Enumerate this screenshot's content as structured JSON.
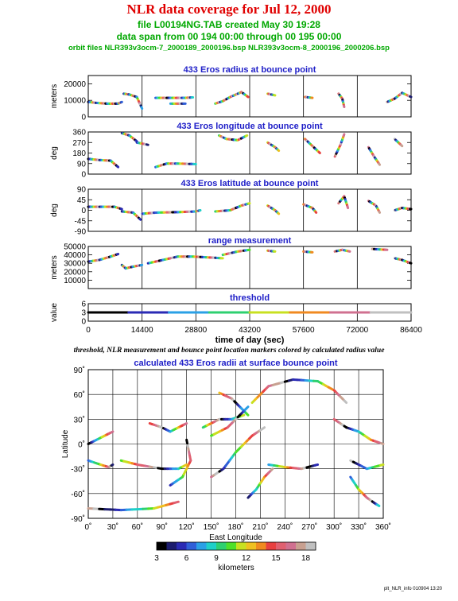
{
  "header": {
    "title": "NLR data coverage for Jul 12, 2000",
    "file_line": "file L00194NG.TAB created May 30 19:28",
    "span_line": "data span from 00 194 00:00 through 00 195 00:00",
    "orbit_line": "orbit files NLR393v3ocm-7_2000189_2000196.bsp NLR393v3ocm-8_2000196_2000206.bsp"
  },
  "caption": "threshold, NLR measurement and bounce point location markers colored by calculated radius value",
  "footer": "plt_NLR_info 010904 13:20",
  "colors": {
    "panel_title": "#2020c8",
    "title": "#e00000",
    "subtitle": "#00a800",
    "colorbar": [
      "#000000",
      "#1c1c6e",
      "#2a2ab4",
      "#2f5fd8",
      "#2aa0e6",
      "#1fd0c8",
      "#2ed070",
      "#4ee028",
      "#c8e020",
      "#f0c020",
      "#f08a20",
      "#e84040",
      "#e06070",
      "#d07090",
      "#c8a090",
      "#c0c0c0"
    ]
  },
  "chart_data": [
    {
      "type": "scatter",
      "title": "433 Eros radius at bounce point",
      "ylabel": "meters",
      "ylim": [
        0,
        25000
      ],
      "yticks": [
        0,
        10000,
        20000
      ],
      "xlim": [
        0,
        86400
      ],
      "xticks": [
        14400,
        28800,
        43200,
        57600,
        72000,
        86400
      ],
      "segments": [
        {
          "t": [
            0,
            2000,
            5000,
            8000,
            9000
          ],
          "v": [
            9000,
            8500,
            8000,
            8000,
            9000
          ]
        },
        {
          "t": [
            9500,
            11000,
            13000,
            14400
          ],
          "v": [
            14000,
            13500,
            12000,
            5000
          ]
        },
        {
          "t": [
            18000,
            22000,
            26000,
            28000
          ],
          "v": [
            11500,
            11500,
            11500,
            11800
          ]
        },
        {
          "t": [
            22000,
            26000
          ],
          "v": [
            8000,
            8000
          ]
        },
        {
          "t": [
            34000,
            36000,
            38000,
            39500,
            41000,
            42800
          ],
          "v": [
            8000,
            9500,
            12000,
            13500,
            15000,
            12000
          ]
        },
        {
          "t": [
            48000,
            50000
          ],
          "v": [
            14000,
            13000
          ]
        },
        {
          "t": [
            58000,
            60000
          ],
          "v": [
            12000,
            11500
          ]
        },
        {
          "t": [
            67000,
            68000,
            68500
          ],
          "v": [
            14000,
            11000,
            6000
          ]
        },
        {
          "t": [
            80000,
            82000,
            84000,
            86400
          ],
          "v": [
            9000,
            11000,
            14500,
            12000
          ]
        }
      ]
    },
    {
      "type": "scatter",
      "title": "433 Eros longitude at bounce point",
      "ylabel": "deg",
      "ylim": [
        0,
        360
      ],
      "yticks": [
        0,
        90,
        180,
        270,
        360
      ],
      "xlim": [
        0,
        86400
      ],
      "xticks": [
        14400,
        28800,
        43200,
        57600,
        72000,
        86400
      ],
      "segments": [
        {
          "t": [
            0,
            3000,
            6000,
            8000
          ],
          "v": [
            130,
            120,
            115,
            60
          ]
        },
        {
          "t": [
            9000,
            11000,
            13000
          ],
          "v": [
            350,
            330,
            280
          ]
        },
        {
          "t": [
            13000,
            16000
          ],
          "v": [
            270,
            250
          ]
        },
        {
          "t": [
            18000,
            21000,
            24000,
            28800
          ],
          "v": [
            60,
            90,
            90,
            85
          ]
        },
        {
          "t": [
            35000,
            37000,
            40000,
            42500
          ],
          "v": [
            330,
            300,
            290,
            330
          ]
        },
        {
          "t": [
            48000,
            50000,
            51000
          ],
          "v": [
            270,
            230,
            200
          ]
        },
        {
          "t": [
            58000,
            60000,
            62000
          ],
          "v": [
            300,
            240,
            180
          ]
        },
        {
          "t": [
            66000,
            67500,
            68500
          ],
          "v": [
            150,
            250,
            340
          ]
        },
        {
          "t": [
            75000,
            76500,
            78000
          ],
          "v": [
            230,
            150,
            80
          ]
        },
        {
          "t": [
            82000,
            84000
          ],
          "v": [
            300,
            240
          ]
        }
      ]
    },
    {
      "type": "scatter",
      "title": "433 Eros latitude at bounce point",
      "ylabel": "deg",
      "ylim": [
        -90,
        90
      ],
      "yticks": [
        -90,
        -45,
        0,
        45,
        90
      ],
      "xlim": [
        0,
        86400
      ],
      "xticks": [
        14400,
        28800,
        43200,
        57600,
        72000,
        86400
      ],
      "segments": [
        {
          "t": [
            0,
            3000,
            7000,
            9000
          ],
          "v": [
            15,
            15,
            15,
            5
          ]
        },
        {
          "t": [
            9000,
            12000,
            14000
          ],
          "v": [
            -5,
            -10,
            -40
          ]
        },
        {
          "t": [
            14500,
            18000
          ],
          "v": [
            -15,
            -10
          ]
        },
        {
          "t": [
            18000,
            24000,
            28800,
            30000
          ],
          "v": [
            -10,
            -8,
            -5,
            0
          ]
        },
        {
          "t": [
            34000,
            38000,
            41000,
            43200
          ],
          "v": [
            -5,
            0,
            20,
            30
          ]
        },
        {
          "t": [
            48000,
            50000,
            51000
          ],
          "v": [
            20,
            0,
            -15
          ]
        },
        {
          "t": [
            57600,
            60000,
            61000
          ],
          "v": [
            25,
            10,
            -10
          ]
        },
        {
          "t": [
            67000,
            68500,
            69500
          ],
          "v": [
            30,
            60,
            10
          ]
        },
        {
          "t": [
            75000,
            77000,
            78000
          ],
          "v": [
            40,
            20,
            -10
          ]
        },
        {
          "t": [
            82000,
            84000,
            86400
          ],
          "v": [
            0,
            10,
            5
          ]
        }
      ]
    },
    {
      "type": "scatter",
      "title": "range measurement",
      "ylabel": "meters",
      "ylim": [
        0,
        50000
      ],
      "yticks": [
        10000,
        20000,
        30000,
        40000,
        50000
      ],
      "xlim": [
        0,
        86400
      ],
      "xticks": [
        14400,
        28800,
        43200,
        57600,
        72000,
        86400
      ],
      "segments": [
        {
          "t": [
            0,
            3000,
            6000,
            8000
          ],
          "v": [
            32000,
            34000,
            38000,
            41000
          ]
        },
        {
          "t": [
            9000,
            10000,
            12000,
            14400
          ],
          "v": [
            28000,
            24000,
            26000,
            28000
          ]
        },
        {
          "t": [
            16000,
            20000,
            24000,
            28000,
            32000,
            36000
          ],
          "v": [
            30000,
            34000,
            38000,
            38000,
            37000,
            36000
          ]
        },
        {
          "t": [
            36000,
            40000,
            43200
          ],
          "v": [
            40000,
            44000,
            46000
          ]
        },
        {
          "t": [
            48000,
            50000
          ],
          "v": [
            45000,
            44000
          ]
        },
        {
          "t": [
            57600,
            60000
          ],
          "v": [
            44000,
            43000
          ]
        },
        {
          "t": [
            66000,
            68000,
            70000
          ],
          "v": [
            44000,
            46000,
            44000
          ]
        },
        {
          "t": [
            76000,
            80000
          ],
          "v": [
            47000,
            46000
          ]
        },
        {
          "t": [
            82000,
            84000,
            86400
          ],
          "v": [
            36000,
            34000,
            30000
          ]
        }
      ]
    },
    {
      "type": "scatter",
      "title": "threshold",
      "ylabel": "value",
      "xlabel": "time of day (sec)",
      "ylim": [
        0,
        6
      ],
      "yticks": [
        0,
        3,
        6
      ],
      "xlim": [
        0,
        86400
      ],
      "xticks": [
        0,
        14400,
        28800,
        43200,
        57600,
        72000,
        86400
      ],
      "segments": [
        {
          "t": [
            0,
            86400
          ],
          "v": [
            3,
            3
          ]
        }
      ]
    },
    {
      "type": "scatter",
      "title": "calculated 433 Eros radii at surface bounce point",
      "xlabel": "East Longitude",
      "ylabel": "Latitude",
      "xlim": [
        0,
        360
      ],
      "ylim": [
        -90,
        90
      ],
      "xticks": [
        "0˚",
        "30˚",
        "60˚",
        "90˚",
        "120˚",
        "150˚",
        "180˚",
        "210˚",
        "240˚",
        "270˚",
        "300˚",
        "330˚",
        "360˚"
      ],
      "yticks": [
        "-90˚",
        "-60˚",
        "-30˚",
        "0˚",
        "30˚",
        "60˚",
        "90˚"
      ],
      "colorbar": {
        "label": "kilometers",
        "ticks": [
          "3",
          "6",
          "9",
          "12",
          "15",
          "18"
        ],
        "range": [
          3,
          19
        ]
      },
      "tracks": [
        {
          "lon": [
            0,
            10,
            20,
            30
          ],
          "lat": [
            0,
            5,
            10,
            15
          ]
        },
        {
          "lon": [
            0,
            15,
            25,
            30
          ],
          "lat": [
            -20,
            -25,
            -28,
            -25
          ]
        },
        {
          "lon": [
            40,
            60,
            90,
            110,
            120
          ],
          "lat": [
            -20,
            -25,
            -30,
            -30,
            -25
          ]
        },
        {
          "lon": [
            75,
            90,
            100,
            110,
            120
          ],
          "lat": [
            25,
            20,
            15,
            20,
            25
          ]
        },
        {
          "lon": [
            0,
            40,
            80,
            110
          ],
          "lat": [
            -78,
            -80,
            -78,
            -70
          ]
        },
        {
          "lon": [
            100,
            115,
            125,
            120
          ],
          "lat": [
            -50,
            -40,
            -20,
            5
          ]
        },
        {
          "lon": [
            140,
            150,
            160,
            175,
            190
          ],
          "lat": [
            20,
            25,
            30,
            30,
            35
          ]
        },
        {
          "lon": [
            160,
            175,
            185,
            195
          ],
          "lat": [
            62,
            55,
            45,
            35
          ]
        },
        {
          "lon": [
            150,
            165,
            180,
            200,
            215
          ],
          "lat": [
            -40,
            -30,
            -10,
            10,
            20
          ]
        },
        {
          "lon": [
            195,
            205,
            215,
            225
          ],
          "lat": [
            -65,
            -55,
            -40,
            -30
          ]
        },
        {
          "lon": [
            220,
            240,
            260,
            280
          ],
          "lat": [
            -25,
            -28,
            -30,
            -25
          ]
        },
        {
          "lon": [
            200,
            220,
            250,
            280,
            300,
            315
          ],
          "lat": [
            50,
            70,
            78,
            76,
            65,
            50
          ]
        },
        {
          "lon": [
            300,
            315,
            330,
            345,
            360
          ],
          "lat": [
            30,
            20,
            15,
            5,
            0
          ]
        },
        {
          "lon": [
            320,
            340,
            360
          ],
          "lat": [
            -20,
            -30,
            -25
          ]
        },
        {
          "lon": [
            320,
            330,
            340,
            350,
            355
          ],
          "lat": [
            -40,
            -55,
            -65,
            -72,
            -75
          ]
        },
        {
          "lon": [
            150,
            170,
            185,
            195
          ],
          "lat": [
            10,
            20,
            35,
            45
          ]
        }
      ]
    }
  ]
}
